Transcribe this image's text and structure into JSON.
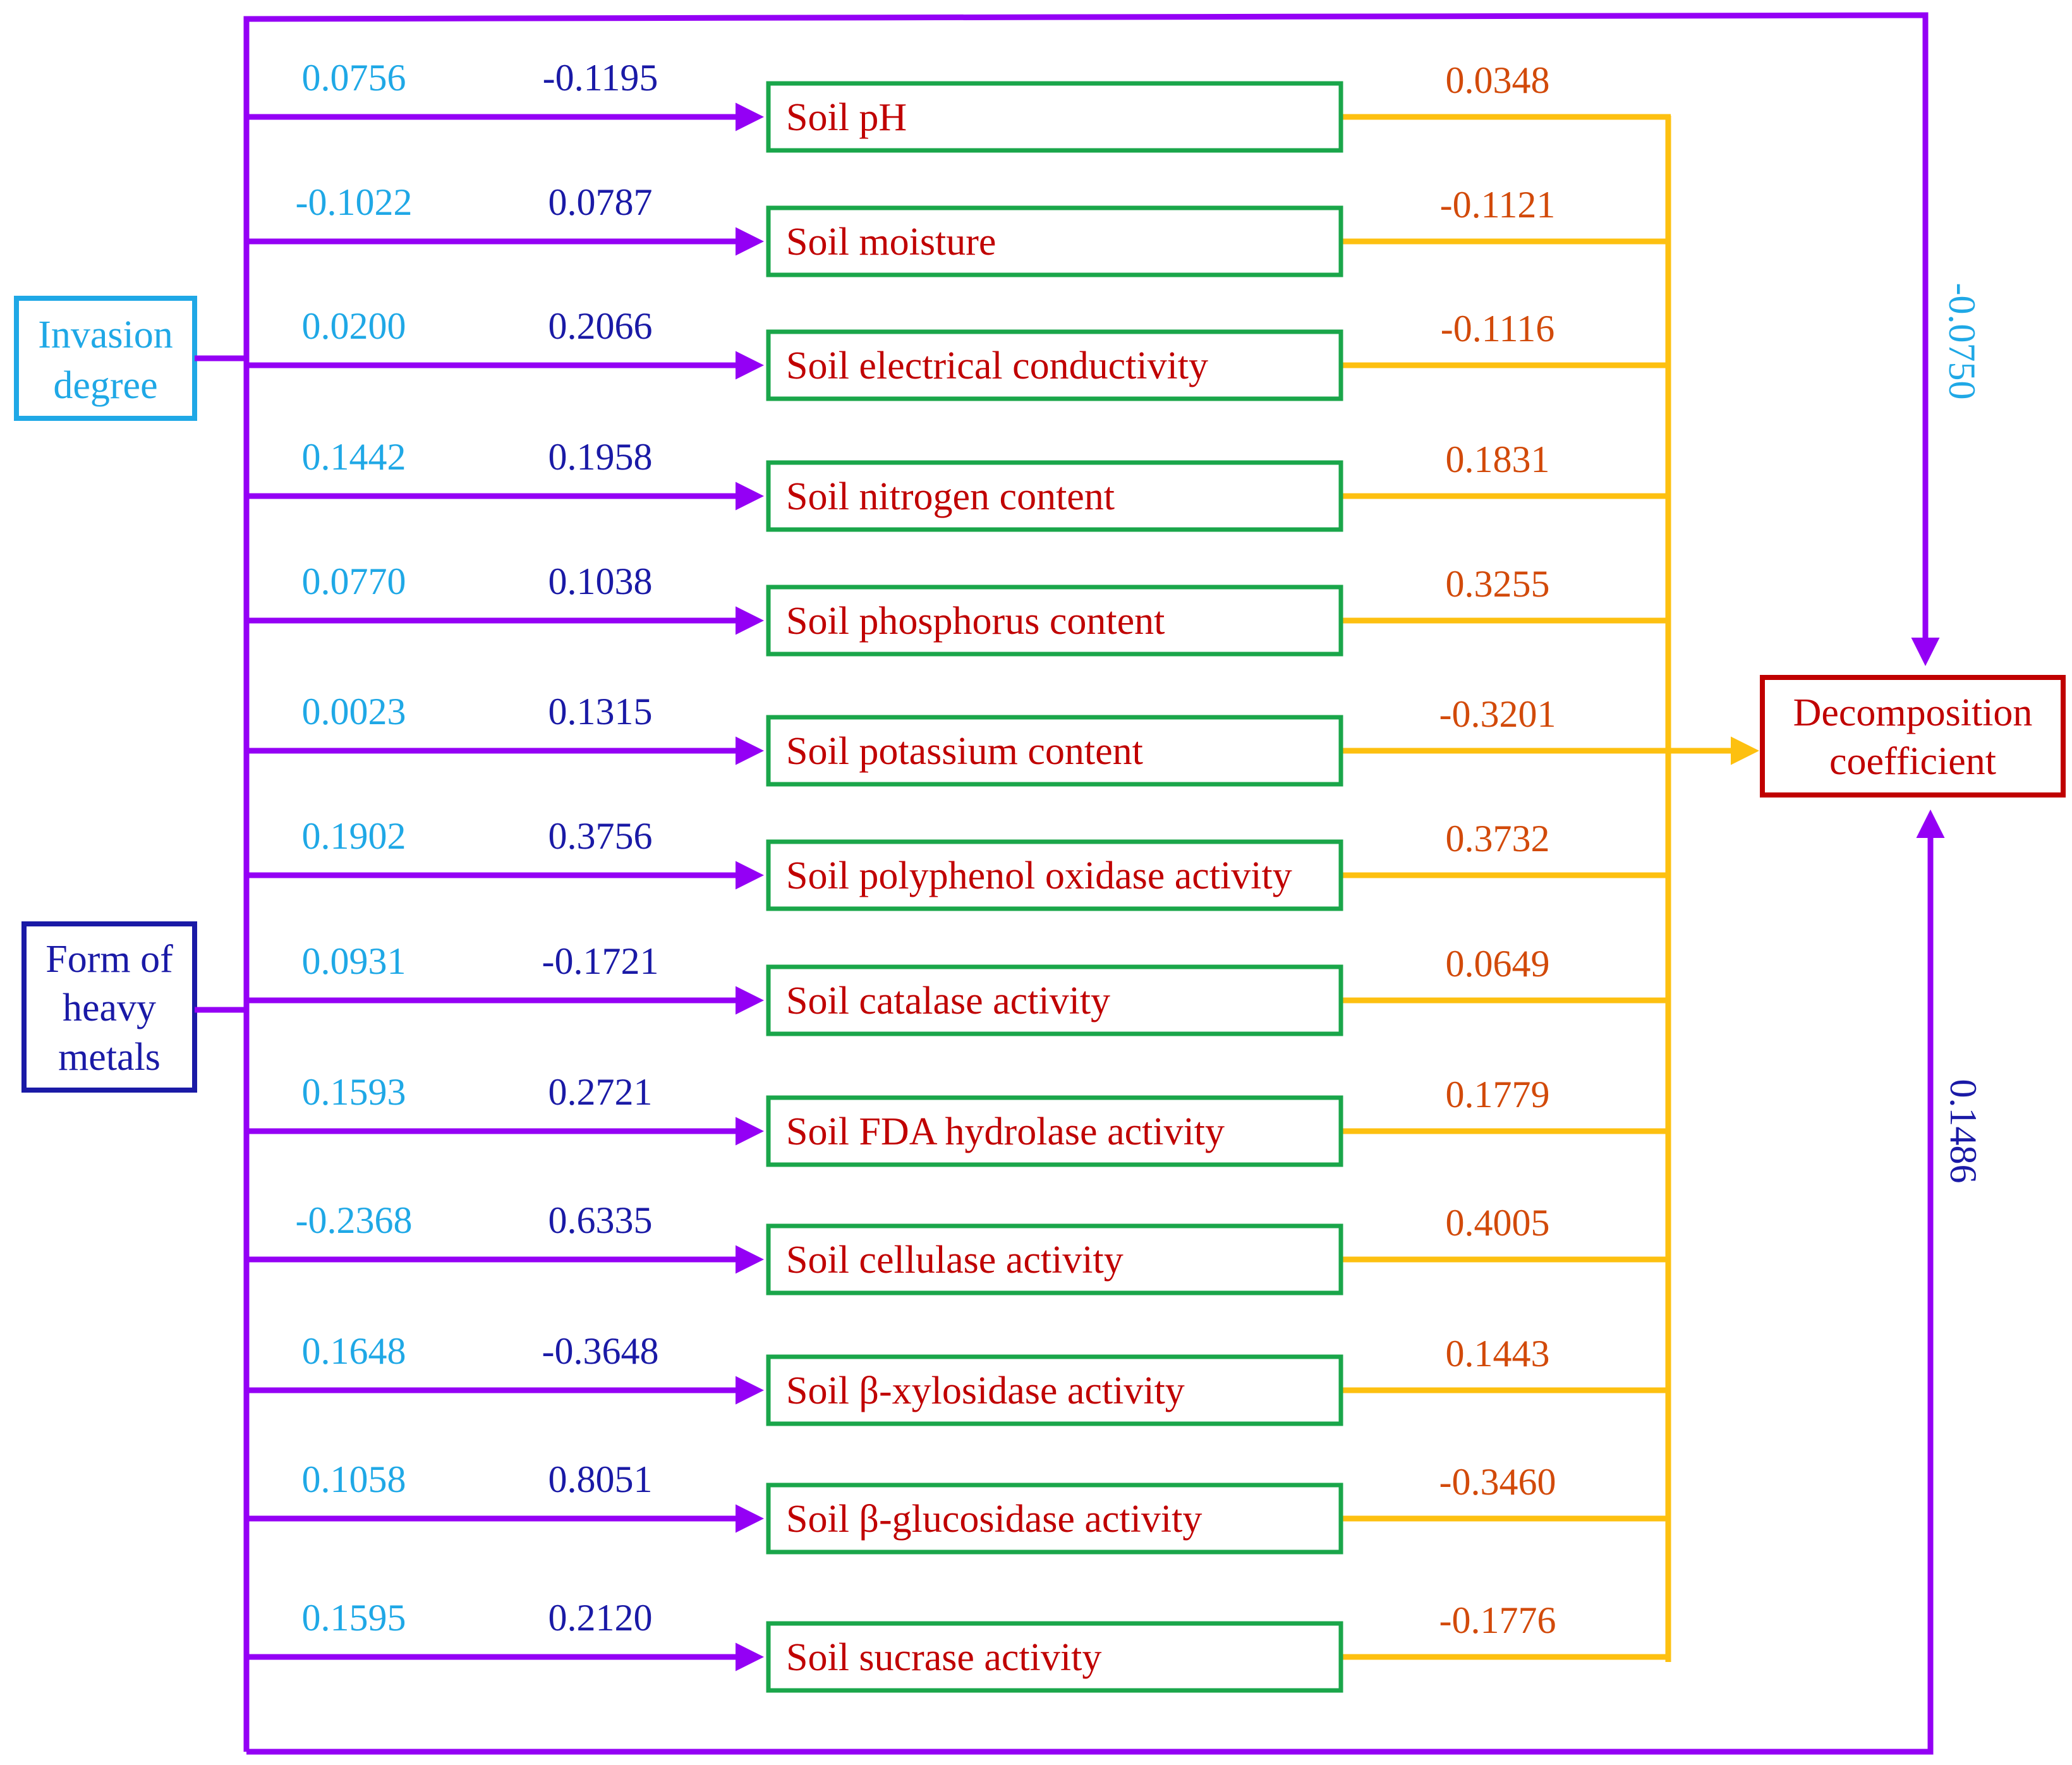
{
  "nodes": {
    "invasion": {
      "lines": [
        "Invasion",
        "degree"
      ],
      "color": "#1fa8e6"
    },
    "heavy_metals": {
      "lines": [
        "Form of",
        "heavy",
        "metals"
      ],
      "color": "#1a1aa6"
    },
    "decomposition": {
      "lines": [
        "Decomposition",
        "coefficient"
      ],
      "color": "#c00000"
    }
  },
  "variables": [
    {
      "label": "Soil pH",
      "coef_invasion": "0.0756",
      "coef_metals": "-0.1195",
      "coef_decomposition": "0.0348"
    },
    {
      "label": "Soil moisture",
      "coef_invasion": "-0.1022",
      "coef_metals": "0.0787",
      "coef_decomposition": "-0.1121"
    },
    {
      "label": "Soil electrical conductivity",
      "coef_invasion": "0.0200",
      "coef_metals": "0.2066",
      "coef_decomposition": "-0.1116"
    },
    {
      "label": "Soil nitrogen content",
      "coef_invasion": "0.1442",
      "coef_metals": "0.1958",
      "coef_decomposition": "0.1831"
    },
    {
      "label": "Soil phosphorus content",
      "coef_invasion": "0.0770",
      "coef_metals": "0.1038",
      "coef_decomposition": "0.3255"
    },
    {
      "label": "Soil potassium content",
      "coef_invasion": "0.0023",
      "coef_metals": "0.1315",
      "coef_decomposition": "-0.3201"
    },
    {
      "label": "Soil polyphenol oxidase activity",
      "coef_invasion": "0.1902",
      "coef_metals": "0.3756",
      "coef_decomposition": "0.3732"
    },
    {
      "label": "Soil catalase activity",
      "coef_invasion": "0.0931",
      "coef_metals": "-0.1721",
      "coef_decomposition": "0.0649"
    },
    {
      "label": "Soil FDA hydrolase activity",
      "coef_invasion": "0.1593",
      "coef_metals": "0.2721",
      "coef_decomposition": "0.1779"
    },
    {
      "label": "Soil cellulase activity",
      "coef_invasion": "-0.2368",
      "coef_metals": "0.6335",
      "coef_decomposition": "0.4005"
    },
    {
      "label": "Soil β-xylosidase activity",
      "coef_invasion": "0.1648",
      "coef_metals": "-0.3648",
      "coef_decomposition": "0.1443"
    },
    {
      "label": "Soil β-glucosidase activity",
      "coef_invasion": "0.1058",
      "coef_metals": "0.8051",
      "coef_decomposition": "-0.3460"
    },
    {
      "label": "Soil sucrase activity",
      "coef_invasion": "0.1595",
      "coef_metals": "0.2120",
      "coef_decomposition": "-0.1776"
    }
  ],
  "direct_paths": {
    "invasion_to_decomposition": "-0.0750",
    "metals_to_decomposition": "0.1486"
  },
  "colors": {
    "path_purple": "#9400f5",
    "path_gold": "#fdc010",
    "box_green": "#1aa64a",
    "coef_invasion": "#1fa8e6",
    "coef_metals": "#1a1aa6",
    "coef_decomposition": "#d24a0a"
  }
}
